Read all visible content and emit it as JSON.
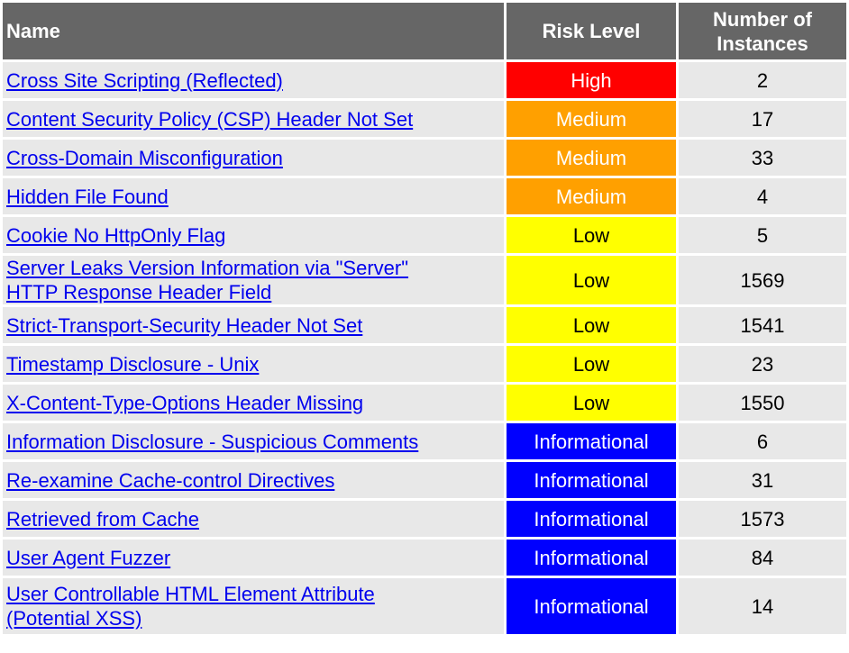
{
  "headers": {
    "name": "Name",
    "risk_level": "Risk Level",
    "instances": "Number of Instances"
  },
  "rows": [
    {
      "name": "Cross Site Scripting (Reflected)",
      "risk": "High",
      "count": "2"
    },
    {
      "name": "Content Security Policy (CSP) Header Not Set",
      "risk": "Medium",
      "count": "17"
    },
    {
      "name": "Cross-Domain Misconfiguration",
      "risk": "Medium",
      "count": "33"
    },
    {
      "name": "Hidden File Found",
      "risk": "Medium",
      "count": "4"
    },
    {
      "name": "Cookie No HttpOnly Flag",
      "risk": "Low",
      "count": "5"
    },
    {
      "name": "Server Leaks Version Information via \"Server\" HTTP Response Header Field",
      "risk": "Low",
      "count": "1569"
    },
    {
      "name": "Strict-Transport-Security Header Not Set",
      "risk": "Low",
      "count": "1541"
    },
    {
      "name": "Timestamp Disclosure - Unix",
      "risk": "Low",
      "count": "23"
    },
    {
      "name": "X-Content-Type-Options Header Missing",
      "risk": "Low",
      "count": "1550"
    },
    {
      "name": "Information Disclosure - Suspicious Comments",
      "risk": "Informational",
      "count": "6"
    },
    {
      "name": "Re-examine Cache-control Directives",
      "risk": "Informational",
      "count": "31"
    },
    {
      "name": "Retrieved from Cache",
      "risk": "Informational",
      "count": "1573"
    },
    {
      "name": "User Agent Fuzzer",
      "risk": "Informational",
      "count": "84"
    },
    {
      "name": "User Controllable HTML Element Attribute (Potential XSS)",
      "risk": "Informational",
      "count": "14"
    }
  ],
  "risk_colors": {
    "High": "#ff0000",
    "Medium": "#ffa000",
    "Low": "#ffff00",
    "Informational": "#0000ff"
  }
}
